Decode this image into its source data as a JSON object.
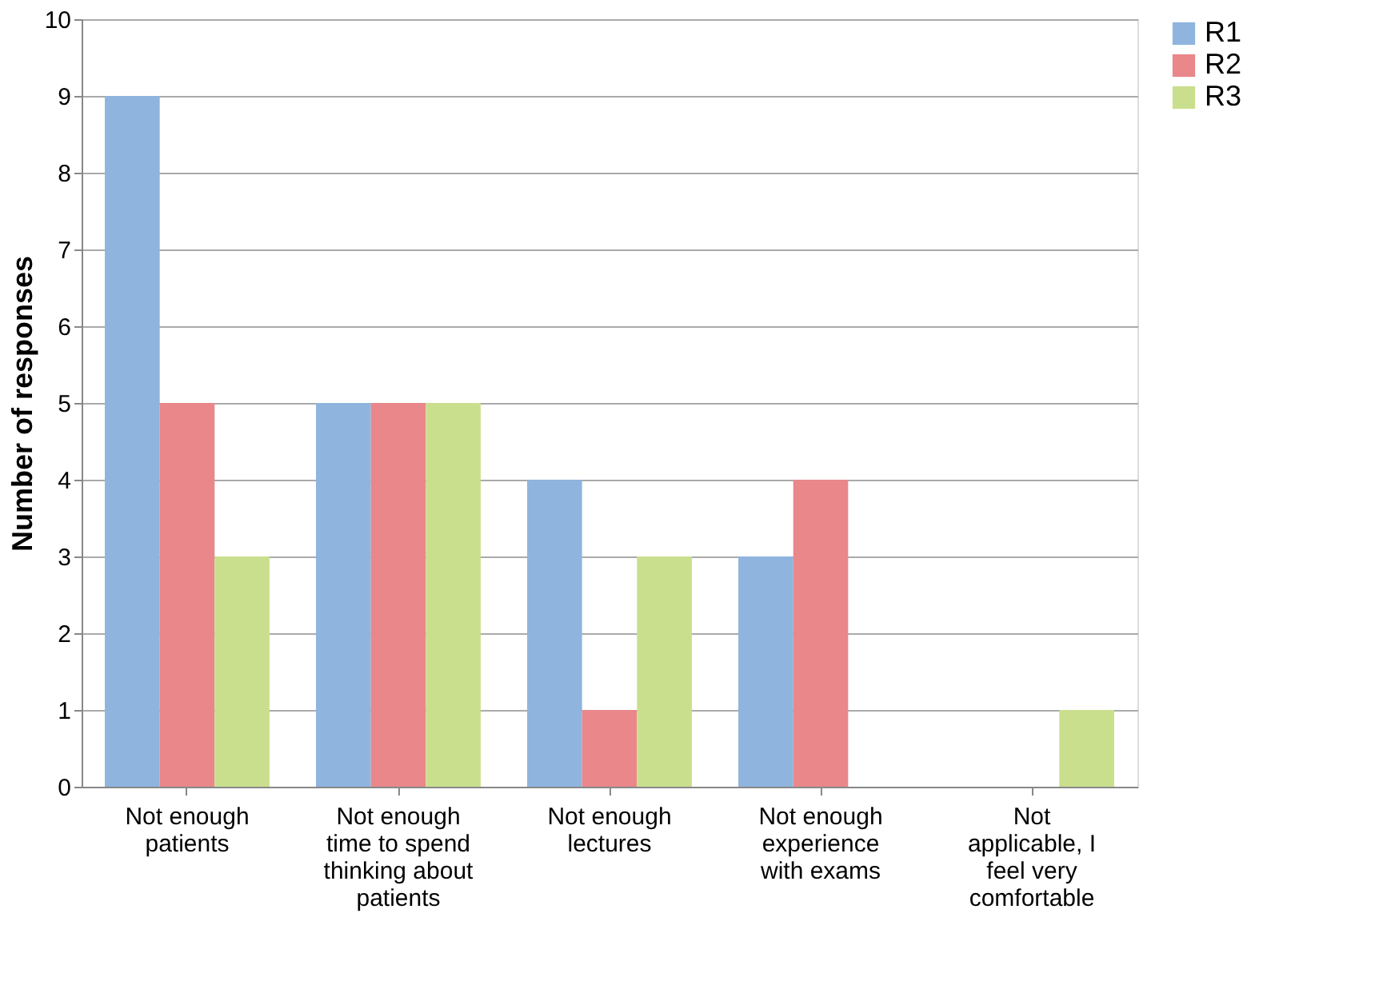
{
  "chart_data": {
    "type": "bar",
    "ylabel": "Number of responses",
    "categories": [
      "Not enough patients",
      "Not enough time to spend thinking about patients",
      "Not enough lectures",
      "Not enough experience with exams",
      "Not applicable, I feel very comfortable"
    ],
    "series": [
      {
        "name": "R1",
        "color": "#8fb4de",
        "values": [
          9,
          5,
          4,
          3,
          0
        ]
      },
      {
        "name": "R2",
        "color": "#e9878b",
        "values": [
          5,
          5,
          1,
          4,
          0
        ]
      },
      {
        "name": "R3",
        "color": "#cadf8e",
        "values": [
          3,
          5,
          3,
          0,
          1
        ]
      }
    ],
    "ylim": [
      0,
      10
    ],
    "yticks": [
      0,
      1,
      2,
      3,
      4,
      5,
      6,
      7,
      8,
      9,
      10
    ],
    "grid": "y",
    "legend": "right"
  }
}
